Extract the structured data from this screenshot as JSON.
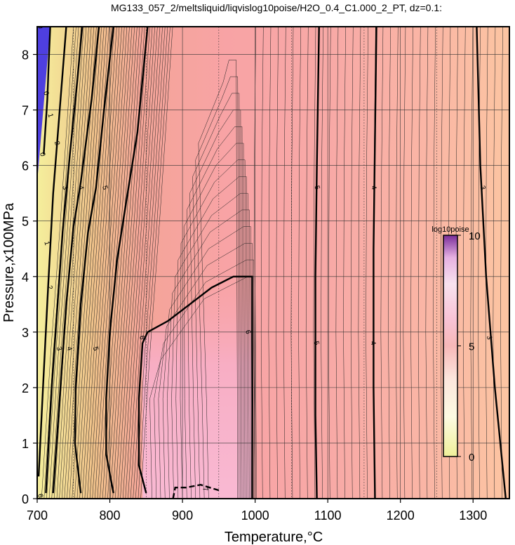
{
  "chart_data": {
    "type": "heatmap",
    "title": "MG133_057_2/meltsliquid/liqvislog10poise/H2O_0.4_C1.000_2_PT, dz=0.1:",
    "xlabel": "Temperature,°C",
    "ylabel": "Pressure,x100MPa",
    "xlim": [
      700,
      1350
    ],
    "ylim": [
      0,
      8.5
    ],
    "xticks": [
      700,
      800,
      900,
      1000,
      1100,
      1200,
      1300
    ],
    "yticks": [
      0,
      1,
      2,
      3,
      4,
      5,
      6,
      7,
      8
    ],
    "grid": true,
    "colorbar": {
      "title": "log10poise",
      "min": 0,
      "max": 10,
      "ticks": [
        0,
        5,
        10
      ],
      "position": "right"
    },
    "colors": {
      "frame": "#000000",
      "grid": "#333333",
      "bg_low": "#4e3fe0",
      "bg_viscous": "#f0ef9a",
      "bg_mid": "#f7a39d",
      "bg_peak": "#f8b2cc",
      "bg_high_t": "#fbc3a3"
    },
    "series": [
      {
        "name": "0",
        "values": [
          [
            709,
            6.2
          ],
          [
            711,
            6.6
          ],
          [
            714,
            7.2
          ],
          [
            716,
            7.9
          ],
          [
            718,
            8.5
          ]
        ]
      },
      {
        "name": "1",
        "values": [
          [
            702,
            0.4
          ],
          [
            708,
            2.0
          ],
          [
            715,
            3.8
          ],
          [
            722,
            5.5
          ],
          [
            731,
            7.0
          ],
          [
            740,
            8.5
          ]
        ]
      },
      {
        "name": "2",
        "values": [
          [
            712,
            0.1
          ],
          [
            720,
            2.0
          ],
          [
            728,
            3.5
          ],
          [
            735,
            4.8
          ],
          [
            745,
            6.2
          ],
          [
            755,
            7.5
          ],
          [
            762,
            8.5
          ]
        ]
      },
      {
        "name": "3",
        "values": [
          [
            722,
            0.1
          ],
          [
            732,
            2.0
          ],
          [
            740,
            3.5
          ],
          [
            750,
            4.9
          ],
          [
            760,
            5.7
          ],
          [
            775,
            7.2
          ],
          [
            785,
            8.5
          ]
        ]
      },
      {
        "name": "4",
        "values": [
          [
            760,
            0.1
          ],
          [
            752,
            1.0
          ],
          [
            753,
            2.0
          ],
          [
            760,
            3.5
          ],
          [
            770,
            4.8
          ],
          [
            781,
            5.6
          ],
          [
            792,
            7.0
          ],
          [
            805,
            8.5
          ]
        ]
      },
      {
        "name": "5",
        "values": [
          [
            805,
            0.1
          ],
          [
            795,
            0.8
          ],
          [
            795,
            1.8
          ],
          [
            800,
            3.0
          ],
          [
            810,
            4.3
          ],
          [
            822,
            5.3
          ],
          [
            838,
            6.6
          ],
          [
            852,
            8.5
          ]
        ]
      },
      {
        "name": "6",
        "values": [
          [
            850,
            0.1
          ],
          [
            840,
            0.6
          ],
          [
            840,
            1.8
          ],
          [
            845,
            2.8
          ],
          [
            852,
            3.0
          ],
          [
            880,
            3.2
          ],
          [
            910,
            3.5
          ],
          [
            940,
            3.8
          ],
          [
            970,
            4.0
          ],
          [
            996,
            4.0
          ],
          [
            996,
            0.0
          ]
        ]
      },
      {
        "name": "7",
        "values": [
          [
            887,
            0.0
          ],
          [
            890,
            0.2
          ],
          [
            905,
            0.2
          ],
          [
            925,
            0.25
          ],
          [
            950,
            0.15
          ]
        ]
      },
      {
        "name": "5",
        "values": [
          [
            1085,
            0.0
          ],
          [
            1083,
            1.5
          ],
          [
            1083,
            4.0
          ],
          [
            1085,
            6.0
          ],
          [
            1088,
            8.5
          ]
        ]
      },
      {
        "name": "4",
        "values": [
          [
            1165,
            0.0
          ],
          [
            1163,
            2.0
          ],
          [
            1163,
            4.5
          ],
          [
            1165,
            6.5
          ],
          [
            1167,
            8.5
          ]
        ]
      },
      {
        "name": "3",
        "values": [
          [
            1345,
            0.0
          ],
          [
            1330,
            2.0
          ],
          [
            1318,
            4.0
          ],
          [
            1310,
            6.0
          ],
          [
            1305,
            8.5
          ]
        ]
      }
    ],
    "contour_labels": [
      {
        "text": "0",
        "x": 704,
        "y": 8.5
      },
      {
        "text": "0",
        "x": 712,
        "y": 7.3
      },
      {
        "text": "0",
        "x": 707,
        "y": 6.2
      },
      {
        "text": "1",
        "x": 718,
        "y": 6.9
      },
      {
        "text": "1",
        "x": 713,
        "y": 4.6
      },
      {
        "text": "2",
        "x": 727,
        "y": 6.4
      },
      {
        "text": "2",
        "x": 717,
        "y": 3.8
      },
      {
        "text": "3",
        "x": 738,
        "y": 5.6
      },
      {
        "text": "3",
        "x": 730,
        "y": 2.7
      },
      {
        "text": "4",
        "x": 760,
        "y": 5.6
      },
      {
        "text": "4",
        "x": 744,
        "y": 2.7
      },
      {
        "text": "5",
        "x": 793,
        "y": 5.6
      },
      {
        "text": "5",
        "x": 780,
        "y": 2.7
      },
      {
        "text": "6",
        "x": 844,
        "y": 2.9
      },
      {
        "text": "6",
        "x": 990,
        "y": 3.0
      },
      {
        "text": "7",
        "x": 931,
        "y": 0.17
      },
      {
        "text": "5",
        "x": 1085,
        "y": 5.6
      },
      {
        "text": "5",
        "x": 1084,
        "y": 2.8
      },
      {
        "text": "4",
        "x": 1163,
        "y": 5.6
      },
      {
        "text": "4",
        "x": 1162,
        "y": 2.8
      },
      {
        "text": "3",
        "x": 1313,
        "y": 5.6
      },
      {
        "text": "3",
        "x": 1322,
        "y": 2.9
      },
      {
        "text": "6",
        "x": 704,
        "y": 0.05
      }
    ]
  }
}
